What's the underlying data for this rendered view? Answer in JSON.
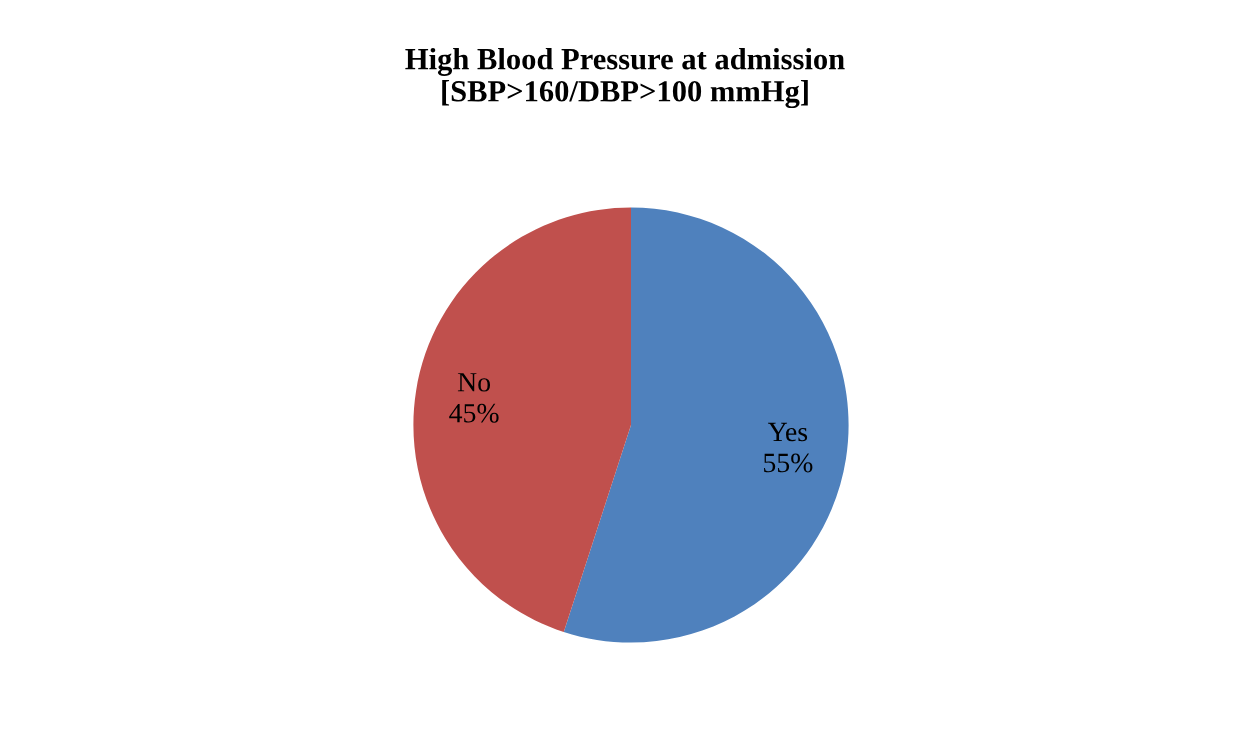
{
  "chart_data": {
    "type": "pie",
    "title": "High Blood Pressure at admission\n[SBP>160/DBP>100 mmHg]",
    "categories": [
      "Yes",
      "No"
    ],
    "values": [
      55,
      45
    ],
    "colors": [
      "#4f81bd",
      "#c0504d"
    ],
    "value_labels": [
      "55%",
      "45%"
    ],
    "legend": false
  }
}
